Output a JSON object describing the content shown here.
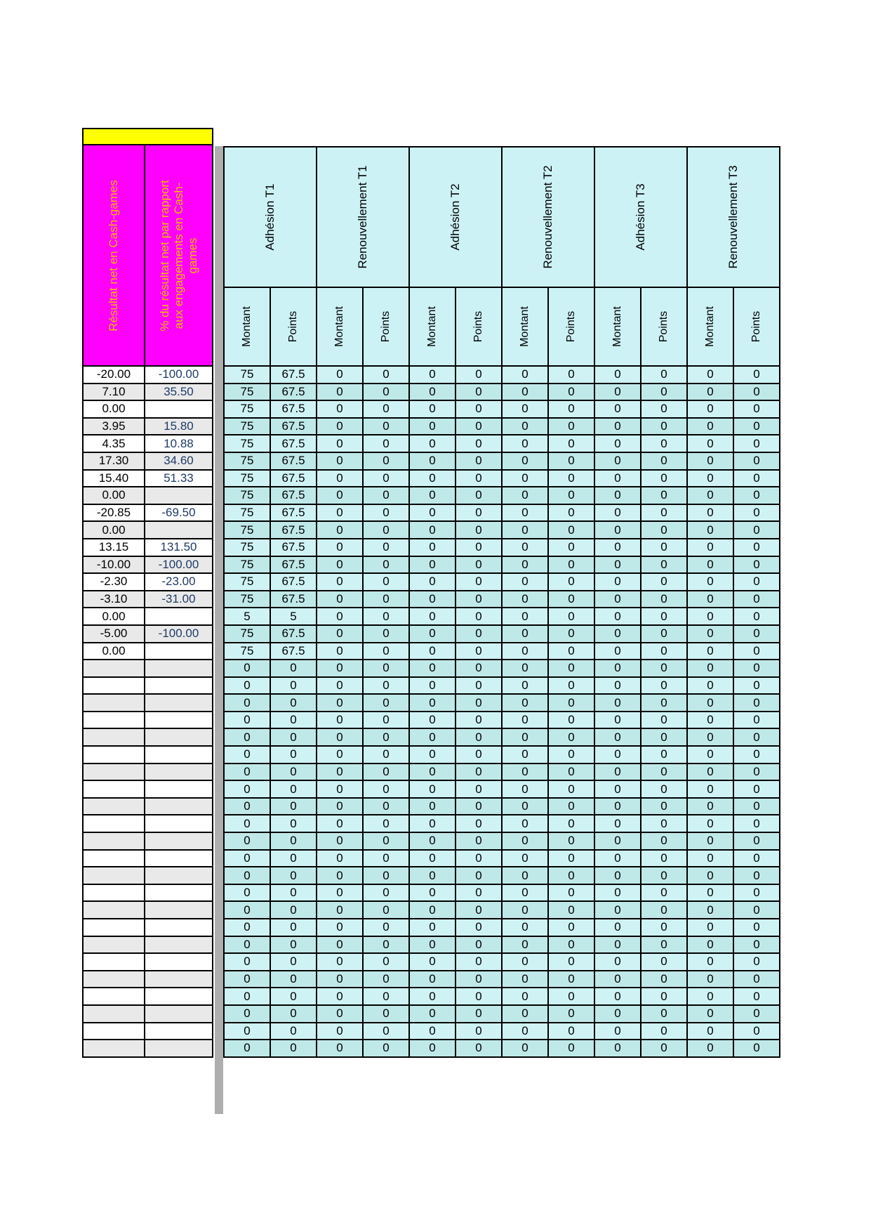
{
  "left_table": {
    "top_banner": "",
    "columns": [
      {
        "label": "Résultat net en Cash-games"
      },
      {
        "label": "% du résultat net par rapport aux engagements en Cash-games"
      }
    ]
  },
  "main_table": {
    "groups": [
      {
        "label": "Adhésion T1"
      },
      {
        "label": "Renouvellement T1"
      },
      {
        "label": "Adhésion T2"
      },
      {
        "label": "Renouvellement T2"
      },
      {
        "label": "Adhésion T3"
      },
      {
        "label": "Renouvellement T3"
      }
    ],
    "subheaders": {
      "montant": "Montant",
      "points": "Points"
    }
  },
  "rows": [
    {
      "res": "-20.00",
      "pct": "-100.00",
      "cells": [
        "75",
        "67.5",
        "0",
        "0",
        "0",
        "0",
        "0",
        "0",
        "0",
        "0",
        "0",
        "0"
      ]
    },
    {
      "res": "7.10",
      "pct": "35.50",
      "cells": [
        "75",
        "67.5",
        "0",
        "0",
        "0",
        "0",
        "0",
        "0",
        "0",
        "0",
        "0",
        "0"
      ]
    },
    {
      "res": "0.00",
      "pct": "",
      "cells": [
        "75",
        "67.5",
        "0",
        "0",
        "0",
        "0",
        "0",
        "0",
        "0",
        "0",
        "0",
        "0"
      ]
    },
    {
      "res": "3.95",
      "pct": "15.80",
      "cells": [
        "75",
        "67.5",
        "0",
        "0",
        "0",
        "0",
        "0",
        "0",
        "0",
        "0",
        "0",
        "0"
      ]
    },
    {
      "res": "4.35",
      "pct": "10.88",
      "cells": [
        "75",
        "67.5",
        "0",
        "0",
        "0",
        "0",
        "0",
        "0",
        "0",
        "0",
        "0",
        "0"
      ]
    },
    {
      "res": "17.30",
      "pct": "34.60",
      "cells": [
        "75",
        "67.5",
        "0",
        "0",
        "0",
        "0",
        "0",
        "0",
        "0",
        "0",
        "0",
        "0"
      ]
    },
    {
      "res": "15.40",
      "pct": "51.33",
      "cells": [
        "75",
        "67.5",
        "0",
        "0",
        "0",
        "0",
        "0",
        "0",
        "0",
        "0",
        "0",
        "0"
      ]
    },
    {
      "res": "0.00",
      "pct": "",
      "cells": [
        "75",
        "67.5",
        "0",
        "0",
        "0",
        "0",
        "0",
        "0",
        "0",
        "0",
        "0",
        "0"
      ]
    },
    {
      "res": "-20.85",
      "pct": "-69.50",
      "cells": [
        "75",
        "67.5",
        "0",
        "0",
        "0",
        "0",
        "0",
        "0",
        "0",
        "0",
        "0",
        "0"
      ]
    },
    {
      "res": "0.00",
      "pct": "",
      "cells": [
        "75",
        "67.5",
        "0",
        "0",
        "0",
        "0",
        "0",
        "0",
        "0",
        "0",
        "0",
        "0"
      ]
    },
    {
      "res": "13.15",
      "pct": "131.50",
      "cells": [
        "75",
        "67.5",
        "0",
        "0",
        "0",
        "0",
        "0",
        "0",
        "0",
        "0",
        "0",
        "0"
      ]
    },
    {
      "res": "-10.00",
      "pct": "-100.00",
      "cells": [
        "75",
        "67.5",
        "0",
        "0",
        "0",
        "0",
        "0",
        "0",
        "0",
        "0",
        "0",
        "0"
      ]
    },
    {
      "res": "-2.30",
      "pct": "-23.00",
      "cells": [
        "75",
        "67.5",
        "0",
        "0",
        "0",
        "0",
        "0",
        "0",
        "0",
        "0",
        "0",
        "0"
      ]
    },
    {
      "res": "-3.10",
      "pct": "-31.00",
      "cells": [
        "75",
        "67.5",
        "0",
        "0",
        "0",
        "0",
        "0",
        "0",
        "0",
        "0",
        "0",
        "0"
      ]
    },
    {
      "res": "0.00",
      "pct": "",
      "cells": [
        "5",
        "5",
        "0",
        "0",
        "0",
        "0",
        "0",
        "0",
        "0",
        "0",
        "0",
        "0"
      ]
    },
    {
      "res": "-5.00",
      "pct": "-100.00",
      "cells": [
        "75",
        "67.5",
        "0",
        "0",
        "0",
        "0",
        "0",
        "0",
        "0",
        "0",
        "0",
        "0"
      ]
    },
    {
      "res": "0.00",
      "pct": "",
      "cells": [
        "75",
        "67.5",
        "0",
        "0",
        "0",
        "0",
        "0",
        "0",
        "0",
        "0",
        "0",
        "0"
      ]
    }
  ],
  "blank_row": {
    "res": "",
    "pct": "",
    "cells": [
      "0",
      "0",
      "0",
      "0",
      "0",
      "0",
      "0",
      "0",
      "0",
      "0",
      "0",
      "0"
    ]
  },
  "blank_row_count": 23,
  "colors": {
    "banner_yellow": "#FFFF00",
    "header_magenta": "#FF00FF",
    "header_text_gold": "#FFBF00",
    "cyan_header": "#CDF2F5",
    "cyan_row_light": "#CFF3F5",
    "cyan_row_dark": "#BFE9E8",
    "left_row_gray": "#E9E9E9",
    "percent_text_blue": "#1F3A66",
    "separator_gray": "#AEAEAE",
    "border": "#000000"
  }
}
